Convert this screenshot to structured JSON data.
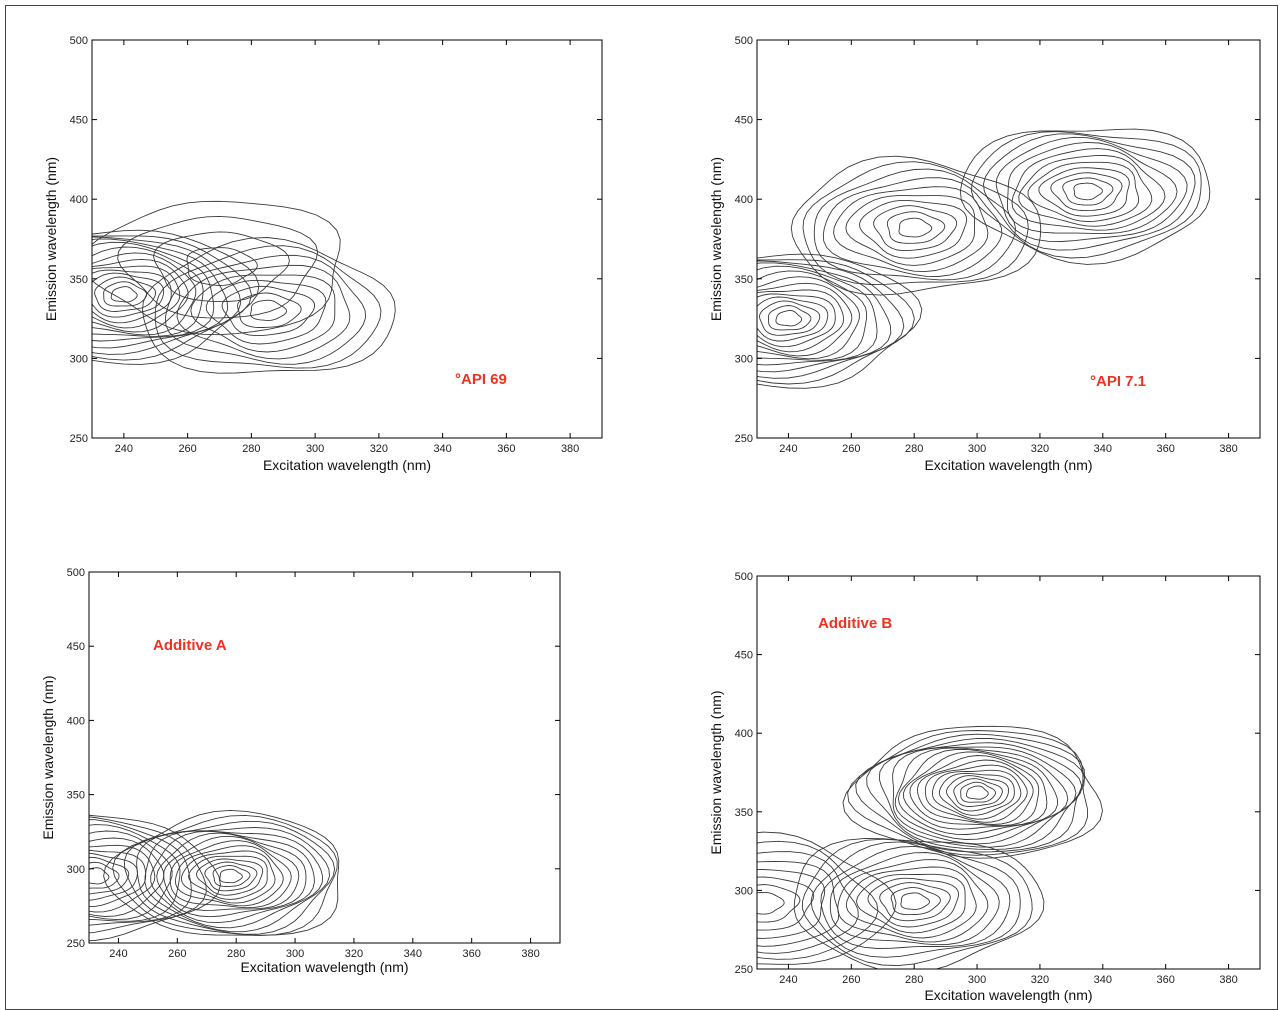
{
  "chart_data": [
    {
      "type": "contour",
      "label": "°API 69",
      "xlabel": "Excitation wavelength (nm)",
      "ylabel": "Emission wavelength (nm)",
      "xlim": [
        230,
        390
      ],
      "ylim": [
        250,
        500
      ],
      "xticks": [
        240,
        260,
        280,
        300,
        320,
        340,
        360,
        380
      ],
      "yticks": [
        250,
        300,
        350,
        400,
        450,
        500
      ],
      "peaks": [
        {
          "ex": 240,
          "em": 340,
          "levels": 14
        },
        {
          "ex": 285,
          "em": 330,
          "levels": 9
        },
        {
          "ex": 270,
          "em": 358,
          "levels": 4
        }
      ]
    },
    {
      "type": "contour",
      "label": "°API 7.1",
      "xlabel": "Excitation wavelength (nm)",
      "ylabel": "Emission wavelength (nm)",
      "xlim": [
        230,
        390
      ],
      "ylim": [
        250,
        500
      ],
      "xticks": [
        240,
        260,
        280,
        300,
        320,
        340,
        360,
        380
      ],
      "yticks": [
        250,
        300,
        350,
        400,
        450,
        500
      ],
      "peaks": [
        {
          "ex": 240,
          "em": 325,
          "levels": 14
        },
        {
          "ex": 280,
          "em": 382,
          "levels": 10
        },
        {
          "ex": 335,
          "em": 405,
          "levels": 12
        }
      ]
    },
    {
      "type": "contour",
      "label": "Additive A",
      "xlabel": "Excitation wavelength (nm)",
      "ylabel": "Emission wavelength (nm)",
      "xlim": [
        230,
        390
      ],
      "ylim": [
        250,
        500
      ],
      "xticks": [
        240,
        260,
        280,
        300,
        320,
        340,
        360,
        380
      ],
      "yticks": [
        250,
        300,
        350,
        400,
        450,
        500
      ],
      "peaks": [
        {
          "ex": 232,
          "em": 295,
          "levels": 12
        },
        {
          "ex": 278,
          "em": 295,
          "levels": 16
        }
      ]
    },
    {
      "type": "contour",
      "label": "Additive B",
      "xlabel": "Excitation wavelength (nm)",
      "ylabel": "Emission wavelength (nm)",
      "xlim": [
        230,
        390
      ],
      "ylim": [
        250,
        500
      ],
      "xticks": [
        240,
        260,
        280,
        300,
        320,
        340,
        360,
        380
      ],
      "yticks": [
        250,
        300,
        350,
        400,
        450,
        500
      ],
      "peaks": [
        {
          "ex": 300,
          "em": 362,
          "levels": 18
        },
        {
          "ex": 280,
          "em": 293,
          "levels": 12
        },
        {
          "ex": 232,
          "em": 292,
          "levels": 8
        }
      ]
    }
  ],
  "colors": {
    "label_color": "#ee3322",
    "contour_color": "#3a3a3a"
  }
}
